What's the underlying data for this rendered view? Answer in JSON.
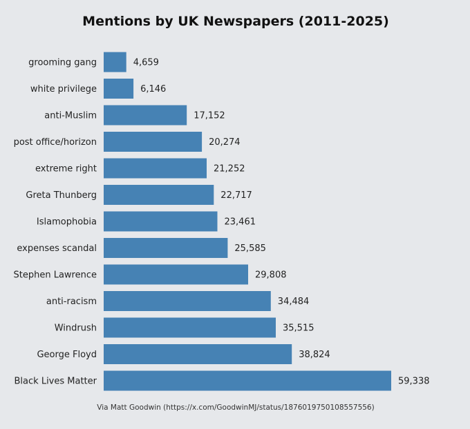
{
  "chart_data": {
    "type": "bar",
    "orientation": "horizontal",
    "title": "Mentions by UK Newspapers (2011-2025)",
    "categories": [
      "grooming gang",
      "white privilege",
      "anti-Muslim",
      "post office/horizon",
      "extreme right",
      "Greta Thunberg",
      "Islamophobia",
      "expenses scandal",
      "Stephen Lawrence",
      "anti-racism",
      "Windrush",
      "George Floyd",
      "Black Lives Matter"
    ],
    "values": [
      4659,
      6146,
      17152,
      20274,
      21252,
      22717,
      23461,
      25585,
      29808,
      34484,
      35515,
      38824,
      59338
    ],
    "value_labels": [
      "4,659",
      "6,146",
      "17,152",
      "20,274",
      "21,252",
      "22,717",
      "23,461",
      "25,585",
      "29,808",
      "34,484",
      "35,515",
      "38,824",
      "59,338"
    ],
    "xlabel": "",
    "ylabel": "",
    "xlim": [
      0,
      59338
    ],
    "grid": false,
    "legend": "none",
    "bar_color": "#4682b4",
    "background_color": "#e6e8eb"
  },
  "footer": {
    "credit": "Via Matt Goodwin (https://x.com/GoodwinMJ/status/1876019750108557556)"
  }
}
